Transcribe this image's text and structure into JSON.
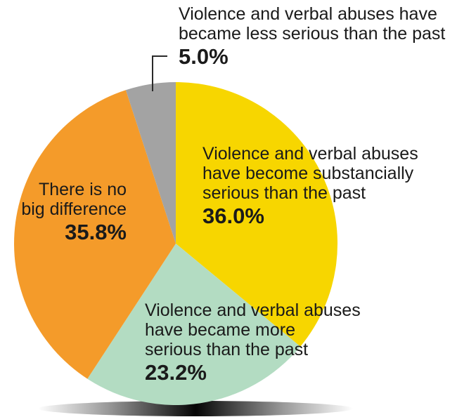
{
  "chart_data": {
    "type": "pie",
    "title": "",
    "legend": "none",
    "slices": [
      {
        "label_lines": [
          "Violence and verbal abuses",
          "have become substancially",
          "serious than the past"
        ],
        "value": 36.0,
        "value_label": "36.0%",
        "color": "#f7d600"
      },
      {
        "label_lines": [
          "Violence and verbal abuses",
          "have became more",
          "serious than the past"
        ],
        "value": 23.2,
        "value_label": "23.2%",
        "color": "#b3dcc2"
      },
      {
        "label_lines": [
          "There is no",
          "big difference"
        ],
        "value": 35.8,
        "value_label": "35.8%",
        "color": "#f49b2a"
      },
      {
        "label_lines": [
          "Violence and verbal abuses have",
          "became less serious than the past"
        ],
        "value": 5.0,
        "value_label": "5.0%",
        "color": "#a3a3a3"
      }
    ]
  }
}
